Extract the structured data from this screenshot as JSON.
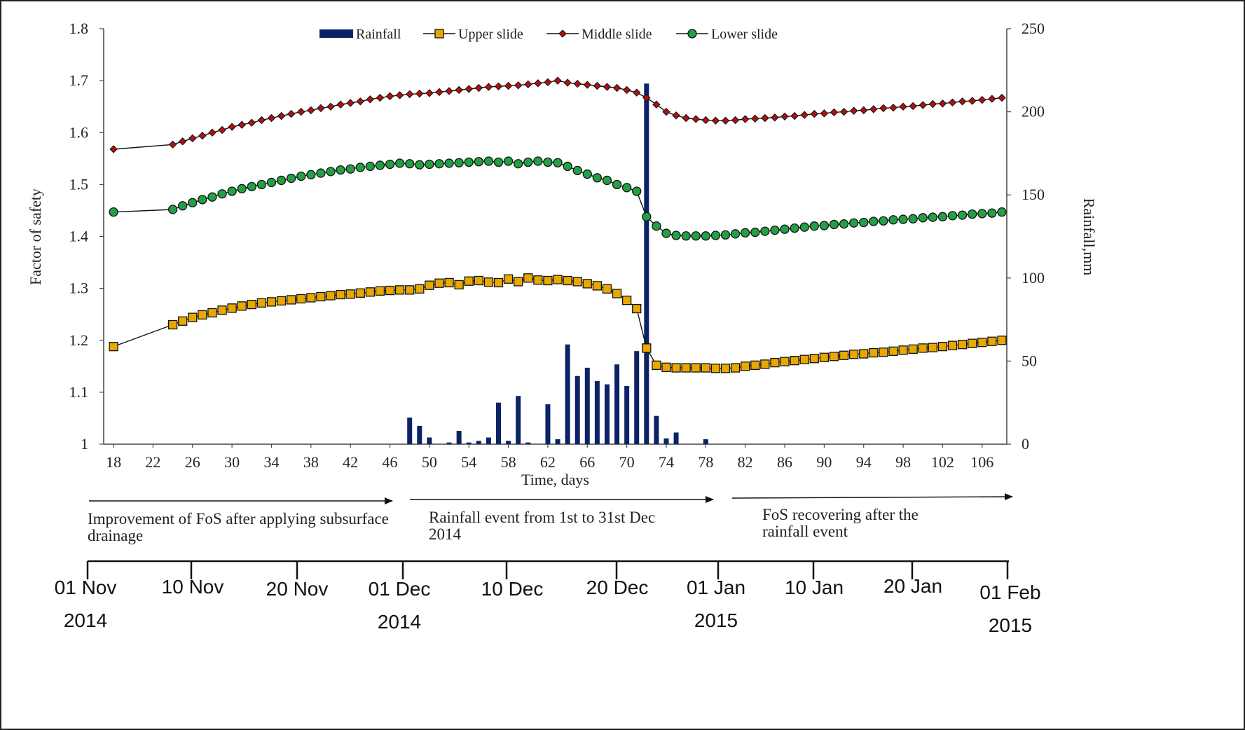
{
  "chart_data": {
    "type": "line",
    "title": "",
    "xlabel": "Time, days",
    "ylabel": "Factor of safety",
    "y2label": "Rainfall,mm",
    "xlim": [
      17,
      108.5
    ],
    "ylim": [
      1.0,
      1.8
    ],
    "y2lim": [
      0,
      250
    ],
    "x_ticks": [
      18,
      22,
      26,
      30,
      34,
      38,
      42,
      46,
      50,
      54,
      58,
      62,
      66,
      70,
      74,
      78,
      82,
      86,
      90,
      94,
      98,
      102,
      106
    ],
    "y_ticks": [
      "1",
      "1.1",
      "1.2",
      "1.3",
      "1.4",
      "1.5",
      "1.6",
      "1.7",
      "1.8"
    ],
    "y2_ticks": [
      "0",
      "50",
      "100",
      "150",
      "200",
      "250"
    ],
    "legend_position": "top",
    "grid": false,
    "series": [
      {
        "name": "Rainfall",
        "type": "bar",
        "color": "#0b2366",
        "x": [
          48,
          49,
          50,
          52,
          53,
          54,
          55,
          56,
          57,
          58,
          59,
          60,
          62,
          63,
          64,
          65,
          66,
          67,
          68,
          69,
          70,
          71,
          72,
          73,
          74,
          75,
          78
        ],
        "values": [
          16,
          11,
          4,
          1,
          8,
          1,
          2,
          4,
          25,
          2,
          29,
          1,
          24,
          3,
          60,
          41,
          46,
          38,
          36,
          48,
          35,
          56,
          217,
          17,
          3.5,
          7,
          3
        ]
      },
      {
        "name": "Upper slide",
        "type": "line",
        "marker": "square",
        "color": "#e8a800",
        "x": [
          18,
          24,
          25,
          26,
          27,
          28,
          29,
          30,
          31,
          32,
          33,
          34,
          35,
          36,
          37,
          38,
          39,
          40,
          41,
          42,
          43,
          44,
          45,
          46,
          47,
          48,
          49,
          50,
          51,
          52,
          53,
          54,
          55,
          56,
          57,
          58,
          59,
          60,
          61,
          62,
          63,
          64,
          65,
          66,
          67,
          68,
          69,
          70,
          71,
          72,
          73,
          74,
          75,
          76,
          77,
          78,
          79,
          80,
          81,
          82,
          83,
          84,
          85,
          86,
          87,
          88,
          89,
          90,
          91,
          92,
          93,
          94,
          95,
          96,
          97,
          98,
          99,
          100,
          101,
          102,
          103,
          104,
          105,
          106,
          107,
          108
        ],
        "values": [
          1.188,
          1.23,
          1.237,
          1.244,
          1.249,
          1.253,
          1.258,
          1.262,
          1.266,
          1.269,
          1.272,
          1.274,
          1.276,
          1.278,
          1.28,
          1.282,
          1.284,
          1.286,
          1.288,
          1.289,
          1.291,
          1.293,
          1.295,
          1.296,
          1.297,
          1.297,
          1.299,
          1.306,
          1.31,
          1.311,
          1.307,
          1.314,
          1.315,
          1.312,
          1.311,
          1.318,
          1.313,
          1.32,
          1.316,
          1.315,
          1.317,
          1.315,
          1.313,
          1.309,
          1.305,
          1.299,
          1.29,
          1.277,
          1.261,
          1.185,
          1.152,
          1.148,
          1.147,
          1.147,
          1.147,
          1.147,
          1.146,
          1.146,
          1.147,
          1.15,
          1.152,
          1.154,
          1.157,
          1.159,
          1.161,
          1.163,
          1.165,
          1.167,
          1.169,
          1.171,
          1.173,
          1.174,
          1.176,
          1.177,
          1.179,
          1.181,
          1.183,
          1.185,
          1.186,
          1.188,
          1.19,
          1.192,
          1.194,
          1.196,
          1.198,
          1.2
        ]
      },
      {
        "name": "Middle slide",
        "type": "line",
        "marker": "diamond",
        "color": "#b01010",
        "x": [
          18,
          24,
          25,
          26,
          27,
          28,
          29,
          30,
          31,
          32,
          33,
          34,
          35,
          36,
          37,
          38,
          39,
          40,
          41,
          42,
          43,
          44,
          45,
          46,
          47,
          48,
          49,
          50,
          51,
          52,
          53,
          54,
          55,
          56,
          57,
          58,
          59,
          60,
          61,
          62,
          63,
          64,
          65,
          66,
          67,
          68,
          69,
          70,
          71,
          72,
          73,
          74,
          75,
          76,
          77,
          78,
          79,
          80,
          81,
          82,
          83,
          84,
          85,
          86,
          87,
          88,
          89,
          90,
          91,
          92,
          93,
          94,
          95,
          96,
          97,
          98,
          99,
          100,
          101,
          102,
          103,
          104,
          105,
          106,
          107,
          108
        ],
        "values": [
          1.568,
          1.577,
          1.583,
          1.589,
          1.594,
          1.6,
          1.605,
          1.611,
          1.615,
          1.619,
          1.624,
          1.628,
          1.632,
          1.636,
          1.64,
          1.643,
          1.647,
          1.65,
          1.654,
          1.657,
          1.66,
          1.664,
          1.667,
          1.67,
          1.672,
          1.674,
          1.675,
          1.676,
          1.678,
          1.68,
          1.682,
          1.684,
          1.686,
          1.688,
          1.689,
          1.69,
          1.691,
          1.693,
          1.695,
          1.697,
          1.7,
          1.696,
          1.694,
          1.692,
          1.69,
          1.688,
          1.686,
          1.682,
          1.677,
          1.667,
          1.654,
          1.64,
          1.633,
          1.628,
          1.626,
          1.624,
          1.623,
          1.623,
          1.624,
          1.626,
          1.627,
          1.628,
          1.629,
          1.631,
          1.632,
          1.634,
          1.636,
          1.637,
          1.639,
          1.64,
          1.642,
          1.643,
          1.645,
          1.647,
          1.648,
          1.65,
          1.651,
          1.653,
          1.655,
          1.656,
          1.658,
          1.66,
          1.661,
          1.663,
          1.665,
          1.667
        ]
      },
      {
        "name": "Lower slide",
        "type": "line",
        "marker": "circle",
        "color": "#22a045",
        "x": [
          18,
          24,
          25,
          26,
          27,
          28,
          29,
          30,
          31,
          32,
          33,
          34,
          35,
          36,
          37,
          38,
          39,
          40,
          41,
          42,
          43,
          44,
          45,
          46,
          47,
          48,
          49,
          50,
          51,
          52,
          53,
          54,
          55,
          56,
          57,
          58,
          59,
          60,
          61,
          62,
          63,
          64,
          65,
          66,
          67,
          68,
          69,
          70,
          71,
          72,
          73,
          74,
          75,
          76,
          77,
          78,
          79,
          80,
          81,
          82,
          83,
          84,
          85,
          86,
          87,
          88,
          89,
          90,
          91,
          92,
          93,
          94,
          95,
          96,
          97,
          98,
          99,
          100,
          101,
          102,
          103,
          104,
          105,
          106,
          107,
          108
        ],
        "values": [
          1.447,
          1.452,
          1.459,
          1.465,
          1.471,
          1.476,
          1.482,
          1.487,
          1.492,
          1.496,
          1.5,
          1.504,
          1.508,
          1.512,
          1.516,
          1.519,
          1.522,
          1.525,
          1.528,
          1.53,
          1.533,
          1.535,
          1.537,
          1.539,
          1.541,
          1.54,
          1.538,
          1.539,
          1.54,
          1.541,
          1.542,
          1.543,
          1.544,
          1.545,
          1.543,
          1.545,
          1.54,
          1.543,
          1.545,
          1.543,
          1.542,
          1.535,
          1.527,
          1.52,
          1.513,
          1.508,
          1.5,
          1.494,
          1.487,
          1.438,
          1.42,
          1.406,
          1.402,
          1.401,
          1.401,
          1.401,
          1.402,
          1.403,
          1.405,
          1.407,
          1.408,
          1.41,
          1.412,
          1.414,
          1.416,
          1.418,
          1.42,
          1.421,
          1.423,
          1.424,
          1.426,
          1.427,
          1.429,
          1.43,
          1.432,
          1.433,
          1.434,
          1.436,
          1.437,
          1.438,
          1.44,
          1.441,
          1.443,
          1.444,
          1.445,
          1.447
        ]
      }
    ],
    "annotations": [
      {
        "text": "Improvement of FoS after applying subsurface drainage",
        "lines": [
          "Improvement of FoS after applying subsurface",
          "drainage"
        ]
      },
      {
        "text": "Rainfall event from 1st to 31st Dec 2014",
        "lines": [
          "Rainfall event from 1st to 31st Dec",
          "2014"
        ]
      },
      {
        "text": "FoS recovering after the rainfall event",
        "lines": [
          "FoS recovering after the",
          "rainfall event"
        ]
      }
    ]
  },
  "timeline": {
    "labels": [
      {
        "lines": [
          "01 Nov",
          "2014"
        ]
      },
      {
        "lines": [
          "10 Nov"
        ]
      },
      {
        "lines": [
          "20 Nov"
        ]
      },
      {
        "lines": [
          "01 Dec",
          "2014"
        ]
      },
      {
        "lines": [
          "10 Dec"
        ]
      },
      {
        "lines": [
          "20 Dec"
        ]
      },
      {
        "lines": [
          "01 Jan",
          "2015"
        ]
      },
      {
        "lines": [
          "10 Jan"
        ]
      },
      {
        "lines": [
          "20 Jan"
        ]
      },
      {
        "lines": [
          "01 Feb",
          "2015"
        ]
      }
    ]
  }
}
